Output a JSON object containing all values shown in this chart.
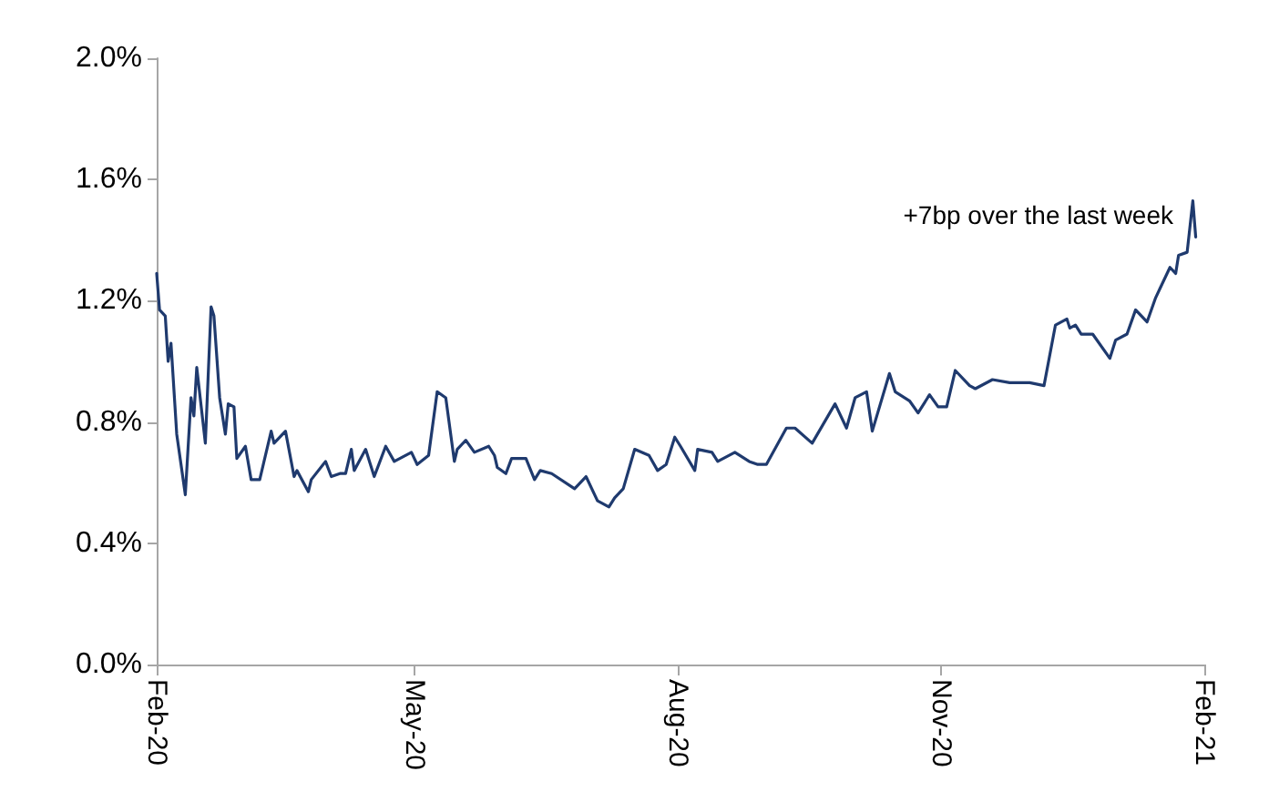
{
  "chart_data": {
    "type": "line",
    "annotations": [
      "+7bp over the last week"
    ],
    "x": [
      "2020-02-01",
      "2020-02-02",
      "2020-02-04",
      "2020-02-05",
      "2020-02-06",
      "2020-02-08",
      "2020-02-11",
      "2020-02-13",
      "2020-02-14",
      "2020-02-15",
      "2020-02-18",
      "2020-02-20",
      "2020-02-21",
      "2020-02-23",
      "2020-02-25",
      "2020-02-26",
      "2020-02-28",
      "2020-02-29",
      "2020-03-03",
      "2020-03-05",
      "2020-03-08",
      "2020-03-12",
      "2020-03-13",
      "2020-03-17",
      "2020-03-20",
      "2020-03-21",
      "2020-03-25",
      "2020-03-26",
      "2020-03-31",
      "2020-04-02",
      "2020-04-05",
      "2020-04-07",
      "2020-04-09",
      "2020-04-10",
      "2020-04-14",
      "2020-04-17",
      "2020-04-21",
      "2020-04-24",
      "2020-04-30",
      "2020-05-02",
      "2020-05-06",
      "2020-05-09",
      "2020-05-12",
      "2020-05-15",
      "2020-05-16",
      "2020-05-19",
      "2020-05-22",
      "2020-05-27",
      "2020-05-29",
      "2020-05-30",
      "2020-06-02",
      "2020-06-04",
      "2020-06-09",
      "2020-06-12",
      "2020-06-14",
      "2020-06-18",
      "2020-06-26",
      "2020-06-30",
      "2020-07-04",
      "2020-07-08",
      "2020-07-10",
      "2020-07-13",
      "2020-07-17",
      "2020-07-22",
      "2020-07-25",
      "2020-07-28",
      "2020-07-31",
      "2020-08-02",
      "2020-08-07",
      "2020-08-08",
      "2020-08-13",
      "2020-08-15",
      "2020-08-21",
      "2020-08-26",
      "2020-08-29",
      "2020-09-01",
      "2020-09-08",
      "2020-09-11",
      "2020-09-17",
      "2020-09-25",
      "2020-09-29",
      "2020-10-02",
      "2020-10-06",
      "2020-10-08",
      "2020-10-14",
      "2020-10-16",
      "2020-10-21",
      "2020-10-24",
      "2020-10-28",
      "2020-10-31",
      "2020-11-03",
      "2020-11-06",
      "2020-11-11",
      "2020-11-13",
      "2020-11-19",
      "2020-11-25",
      "2020-12-02",
      "2020-12-07",
      "2020-12-11",
      "2020-12-15",
      "2020-12-16",
      "2020-12-18",
      "2020-12-20",
      "2020-12-24",
      "2020-12-30",
      "2021-01-01",
      "2021-01-05",
      "2021-01-08",
      "2021-01-12",
      "2021-01-15",
      "2021-01-20",
      "2021-01-22",
      "2021-01-23",
      "2021-01-26",
      "2021-01-28",
      "2021-01-29"
    ],
    "series": [
      {
        "color": "#1f3a6e",
        "values": [
          1.29,
          1.17,
          1.15,
          1.0,
          1.06,
          0.76,
          0.56,
          0.88,
          0.82,
          0.98,
          0.73,
          1.18,
          1.15,
          0.88,
          0.76,
          0.86,
          0.85,
          0.68,
          0.72,
          0.61,
          0.61,
          0.77,
          0.73,
          0.77,
          0.62,
          0.64,
          0.57,
          0.61,
          0.67,
          0.62,
          0.63,
          0.63,
          0.71,
          0.64,
          0.71,
          0.62,
          0.72,
          0.67,
          0.7,
          0.66,
          0.69,
          0.9,
          0.88,
          0.67,
          0.71,
          0.74,
          0.7,
          0.72,
          0.69,
          0.65,
          0.63,
          0.68,
          0.68,
          0.61,
          0.64,
          0.63,
          0.58,
          0.62,
          0.54,
          0.52,
          0.55,
          0.58,
          0.71,
          0.69,
          0.64,
          0.66,
          0.75,
          0.72,
          0.64,
          0.71,
          0.7,
          0.67,
          0.7,
          0.67,
          0.66,
          0.66,
          0.78,
          0.78,
          0.73,
          0.86,
          0.78,
          0.88,
          0.9,
          0.77,
          0.96,
          0.9,
          0.87,
          0.83,
          0.89,
          0.85,
          0.85,
          0.97,
          0.92,
          0.91,
          0.94,
          0.93,
          0.93,
          0.92,
          1.12,
          1.14,
          1.11,
          1.12,
          1.09,
          1.09,
          1.01,
          1.07,
          1.09,
          1.17,
          1.13,
          1.21,
          1.31,
          1.29,
          1.35,
          1.36,
          1.53,
          1.41
        ]
      }
    ],
    "xlim": [
      "2020-02-01",
      "2021-02-01"
    ],
    "xticks": [
      {
        "value": "2020-02-01",
        "label": "Feb-20"
      },
      {
        "value": "2020-05-01",
        "label": "May-20"
      },
      {
        "value": "2020-08-01",
        "label": "Aug-20"
      },
      {
        "value": "2020-11-01",
        "label": "Nov-20"
      },
      {
        "value": "2021-02-01",
        "label": "Feb-21"
      }
    ],
    "ylim": [
      0,
      2
    ],
    "yticks": [
      {
        "value": 0,
        "label": "0.0%"
      },
      {
        "value": 0.4,
        "label": "0.4%"
      },
      {
        "value": 0.8,
        "label": "0.8%"
      },
      {
        "value": 1.2,
        "label": "1.2%"
      },
      {
        "value": 1.6,
        "label": "1.6%"
      },
      {
        "value": 2,
        "label": "2.0%"
      }
    ],
    "grid": false,
    "marker": "none",
    "line_style": "solid"
  }
}
